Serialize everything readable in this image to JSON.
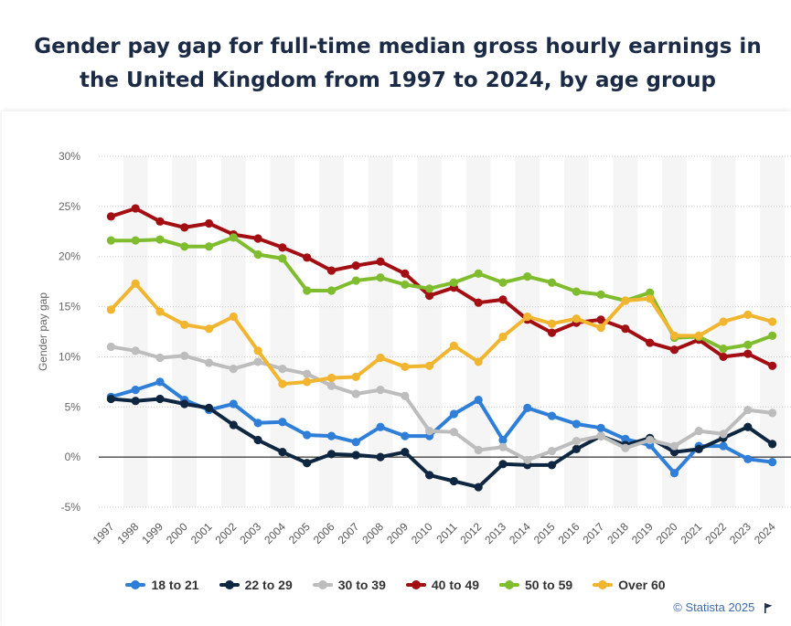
{
  "title": "Gender pay gap for full-time median gross hourly earnings in the United Kingdom from 1997 to 2024, by age group",
  "credit": "© Statista 2025",
  "chart_data": {
    "type": "line",
    "ylabel": "Gender pay gap",
    "xlabel": "",
    "ylim": [
      -5,
      30
    ],
    "yticks": [
      -5,
      0,
      5,
      10,
      15,
      20,
      25,
      30
    ],
    "ytick_labels": [
      "-5%",
      "0%",
      "5%",
      "10%",
      "15%",
      "20%",
      "25%",
      "30%"
    ],
    "grid": true,
    "legend_position": "bottom",
    "categories": [
      "1997",
      "1998",
      "1999",
      "2000",
      "2001",
      "2002",
      "2003",
      "2004",
      "2005",
      "2006",
      "2007",
      "2008",
      "2009",
      "2010",
      "2011",
      "2012",
      "2013",
      "2014",
      "2015",
      "2016",
      "2017",
      "2018",
      "2019",
      "2020",
      "2021",
      "2022",
      "2023",
      "2024"
    ],
    "series": [
      {
        "name": "18 to 21",
        "color": "#2f7ed8",
        "values": [
          6.0,
          6.7,
          7.5,
          5.7,
          4.7,
          5.3,
          3.4,
          3.5,
          2.2,
          2.1,
          1.5,
          3.0,
          2.1,
          2.1,
          4.3,
          5.7,
          1.7,
          4.9,
          4.1,
          3.3,
          2.9,
          1.8,
          1.2,
          -1.6,
          1.1,
          1.1,
          -0.2,
          -0.5
        ]
      },
      {
        "name": "22 to 29",
        "color": "#0e2640",
        "values": [
          5.8,
          5.6,
          5.8,
          5.3,
          4.9,
          3.2,
          1.7,
          0.5,
          -0.6,
          0.3,
          0.2,
          0.0,
          0.5,
          -1.8,
          -2.4,
          -3.0,
          -0.7,
          -0.8,
          -0.8,
          0.8,
          2.1,
          1.2,
          1.9,
          0.5,
          0.8,
          1.9,
          3.0,
          1.3
        ]
      },
      {
        "name": "30 to 39",
        "color": "#bdbdbd",
        "values": [
          11.0,
          10.6,
          9.9,
          10.1,
          9.4,
          8.8,
          9.5,
          8.8,
          8.3,
          7.1,
          6.3,
          6.7,
          6.1,
          2.6,
          2.5,
          0.7,
          1.0,
          -0.3,
          0.6,
          1.6,
          2.1,
          0.9,
          1.7,
          1.1,
          2.6,
          2.3,
          4.7,
          4.4
        ]
      },
      {
        "name": "40 to 49",
        "color": "#a20e12",
        "values": [
          24.0,
          24.8,
          23.5,
          22.9,
          23.3,
          22.2,
          21.8,
          20.9,
          19.9,
          18.6,
          19.1,
          19.5,
          18.3,
          16.1,
          16.9,
          15.4,
          15.7,
          13.7,
          12.4,
          13.4,
          13.7,
          12.8,
          11.4,
          10.7,
          11.7,
          10.0,
          10.3,
          9.1
        ]
      },
      {
        "name": "50 to 59",
        "color": "#7fbd2e",
        "values": [
          21.6,
          21.6,
          21.7,
          21.0,
          21.0,
          21.9,
          20.2,
          19.8,
          16.6,
          16.6,
          17.6,
          17.9,
          17.2,
          16.8,
          17.4,
          18.3,
          17.4,
          18.0,
          17.4,
          16.5,
          16.2,
          15.6,
          16.4,
          11.9,
          12.0,
          10.8,
          11.2,
          12.1
        ]
      },
      {
        "name": "Over 60",
        "color": "#f1b52f",
        "values": [
          14.7,
          17.3,
          14.5,
          13.2,
          12.8,
          14.0,
          10.6,
          7.3,
          7.5,
          7.9,
          8.0,
          9.9,
          9.0,
          9.1,
          11.1,
          9.5,
          12.0,
          14.0,
          13.3,
          13.8,
          12.9,
          15.6,
          15.8,
          12.1,
          12.1,
          13.5,
          14.2,
          13.5
        ]
      }
    ]
  }
}
